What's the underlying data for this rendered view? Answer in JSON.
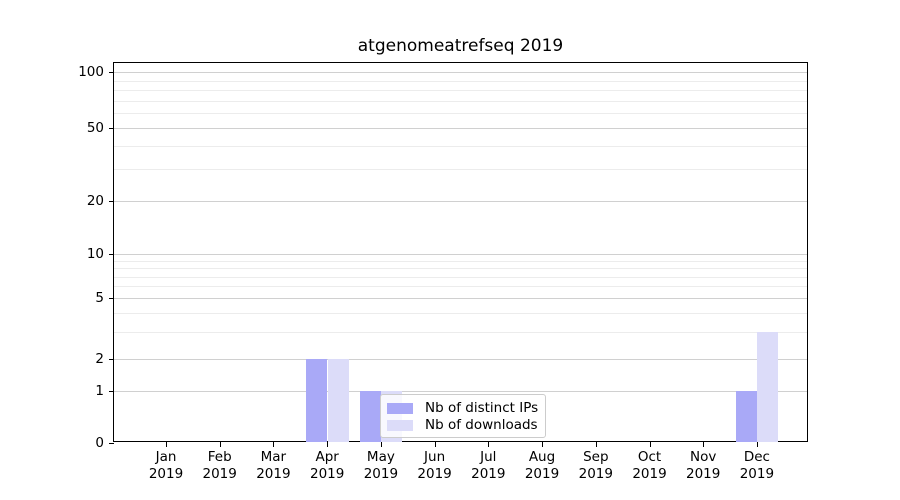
{
  "chart_data": {
    "type": "bar",
    "title": "atgenomeatrefseq 2019",
    "x_months": [
      "Jan",
      "Feb",
      "Mar",
      "Apr",
      "May",
      "Jun",
      "Jul",
      "Aug",
      "Sep",
      "Oct",
      "Nov",
      "Dec"
    ],
    "x_year": "2019",
    "series": [
      {
        "name": "Nb of distinct IPs",
        "color": "#a9a9f7",
        "values": [
          0,
          0,
          0,
          2,
          1,
          0,
          0,
          0,
          0,
          0,
          0,
          1
        ]
      },
      {
        "name": "Nb of downloads",
        "color": "#dcdcf9",
        "values": [
          0,
          0,
          0,
          2,
          1,
          0,
          0,
          0,
          0,
          0,
          0,
          3
        ]
      }
    ],
    "y_axis": {
      "scale": "symlog",
      "ticks": [
        0,
        1,
        2,
        5,
        10,
        20,
        50,
        100
      ],
      "range": [
        0,
        115
      ]
    },
    "grid": {
      "show": true,
      "major_color": "#d0d0d0",
      "minor_color": "#ececec"
    },
    "legend": {
      "entries": [
        "Nb of distinct IPs",
        "Nb of downloads"
      ],
      "position": "lower-center"
    }
  }
}
